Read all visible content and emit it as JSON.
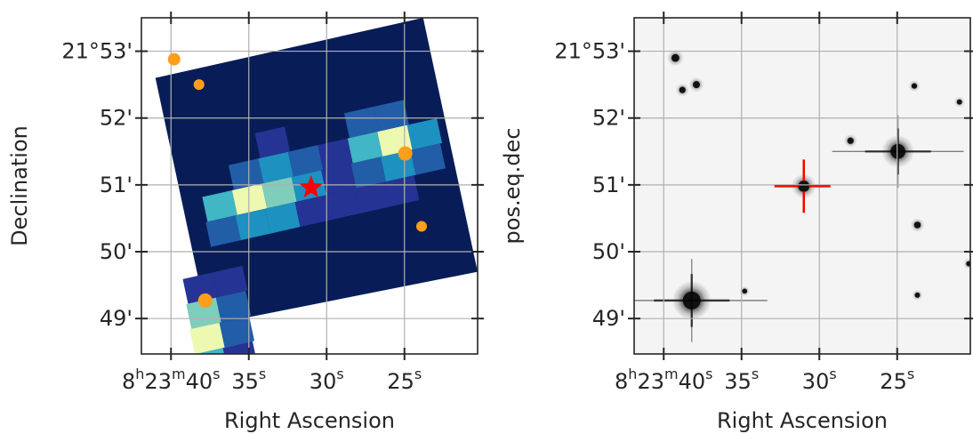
{
  "chart_data": [
    {
      "type": "heatmap",
      "panel": "left",
      "xlabel": "Right Ascension",
      "ylabel": "Declination",
      "x_ticks": [
        {
          "value": 40,
          "h": "8",
          "m": "23",
          "s": "40"
        },
        {
          "value": 35,
          "s": "35"
        },
        {
          "value": 30,
          "s": "30"
        },
        {
          "value": 25,
          "s": "25"
        }
      ],
      "y_ticks": [
        {
          "value": 53,
          "deg": "21°",
          "min": "53'"
        },
        {
          "value": 52,
          "min": "52'"
        },
        {
          "value": 51,
          "min": "51'"
        },
        {
          "value": 50,
          "min": "50'"
        },
        {
          "value": 49,
          "min": "49'"
        }
      ],
      "x_range_seconds": [
        41.9,
        20.3
      ],
      "y_range_arcmin": [
        48.47,
        53.5
      ],
      "grid": true,
      "colormap": "YlGnBu",
      "colormap_colors": [
        "#081d58",
        "#253494",
        "#225ea8",
        "#1d91c0",
        "#41b6c4",
        "#7fcdbb",
        "#c7e9b4",
        "#edf8b1"
      ],
      "image_corners": [
        {
          "ra_s": 41.0,
          "dec": 52.6
        },
        {
          "ra_s": 23.8,
          "dec": 53.5
        },
        {
          "ra_s": 20.3,
          "dec": 49.7
        },
        {
          "ra_s": 37.6,
          "dec": 48.9
        }
      ],
      "grid_cols": 9,
      "grid_rows": 10,
      "cells": [
        {
          "col": 2,
          "row": 4,
          "level": 2
        },
        {
          "col": 3,
          "row": 4,
          "level": 3
        },
        {
          "col": 4,
          "row": 4,
          "level": 2
        },
        {
          "col": 3,
          "row": 3,
          "level": 1
        },
        {
          "col": 5,
          "row": 4,
          "level": 1
        },
        {
          "col": 1,
          "row": 5,
          "level": 4
        },
        {
          "col": 2,
          "row": 5,
          "level": 7
        },
        {
          "col": 3,
          "row": 5,
          "level": 5
        },
        {
          "col": 4,
          "row": 5,
          "level": 3
        },
        {
          "col": 5,
          "row": 5,
          "level": 1
        },
        {
          "col": 1,
          "row": 6,
          "level": 2
        },
        {
          "col": 2,
          "row": 6,
          "level": 3
        },
        {
          "col": 3,
          "row": 6,
          "level": 3
        },
        {
          "col": 4,
          "row": 6,
          "level": 1
        },
        {
          "col": 5,
          "row": 6,
          "level": 1
        },
        {
          "col": 6,
          "row": 3,
          "level": 2
        },
        {
          "col": 7,
          "row": 3,
          "level": 2
        },
        {
          "col": 6,
          "row": 4,
          "level": 4
        },
        {
          "col": 7,
          "row": 4,
          "level": 7
        },
        {
          "col": 8,
          "row": 4,
          "level": 3
        },
        {
          "col": 6,
          "row": 5,
          "level": 2
        },
        {
          "col": 7,
          "row": 5,
          "level": 3
        },
        {
          "col": 8,
          "row": 5,
          "level": 2
        },
        {
          "col": 6,
          "row": 6,
          "level": 1
        },
        {
          "col": 7,
          "row": 6,
          "level": 1
        },
        {
          "col": 0,
          "row": 8,
          "level": 1
        },
        {
          "col": 1,
          "row": 8,
          "level": 1
        },
        {
          "col": 0,
          "row": 9,
          "level": 5
        },
        {
          "col": 1,
          "row": 9,
          "level": 2
        },
        {
          "col": 0,
          "row": 10,
          "level": 7
        },
        {
          "col": 1,
          "row": 10,
          "level": 2
        },
        {
          "col": 0,
          "row": 11,
          "level": 4
        },
        {
          "col": 1,
          "row": 11,
          "level": 1
        }
      ],
      "markers": [
        {
          "kind": "circle",
          "color": "#ff9e1b",
          "ra_s": 39.8,
          "dec": 52.88,
          "size": 7
        },
        {
          "kind": "circle",
          "color": "#ff9e1b",
          "ra_s": 38.2,
          "dec": 52.5,
          "size": 6
        },
        {
          "kind": "circle",
          "color": "#ff9e1b",
          "ra_s": 24.95,
          "dec": 51.47,
          "size": 8
        },
        {
          "kind": "circle",
          "color": "#ff9e1b",
          "ra_s": 23.9,
          "dec": 50.38,
          "size": 6
        },
        {
          "kind": "circle",
          "color": "#ff9e1b",
          "ra_s": 37.8,
          "dec": 49.27,
          "size": 8
        },
        {
          "kind": "star",
          "color": "#ff0000",
          "ra_s": 31.0,
          "dec": 50.96,
          "size": 14
        }
      ]
    },
    {
      "type": "heatmap",
      "panel": "right",
      "xlabel": "Right Ascension",
      "ylabel": "pos.eq.dec",
      "x_ticks": [
        {
          "value": 40,
          "h": "8",
          "m": "23",
          "s": "40"
        },
        {
          "value": 35,
          "s": "35"
        },
        {
          "value": 30,
          "s": "30"
        },
        {
          "value": 25,
          "s": "25"
        }
      ],
      "y_ticks": [
        {
          "value": 53,
          "deg": "21°",
          "min": "53'"
        },
        {
          "value": 52,
          "min": "52'"
        },
        {
          "value": 51,
          "min": "51'"
        },
        {
          "value": 50,
          "min": "50'"
        },
        {
          "value": 49,
          "min": "49'"
        }
      ],
      "x_range_seconds": [
        41.9,
        20.3
      ],
      "y_range_arcmin": [
        48.47,
        53.5
      ],
      "grid": true,
      "colormap": "gray_r",
      "stars": [
        {
          "ra_s": 38.2,
          "dec": 49.27,
          "mag": 1.0,
          "spikes": true
        },
        {
          "ra_s": 24.95,
          "dec": 51.5,
          "mag": 0.8,
          "spikes": true
        },
        {
          "ra_s": 31.0,
          "dec": 50.98,
          "mag": 0.55,
          "spikes": false
        },
        {
          "ra_s": 39.25,
          "dec": 52.9,
          "mag": 0.3,
          "spikes": false
        },
        {
          "ra_s": 37.9,
          "dec": 52.5,
          "mag": 0.25,
          "spikes": false
        },
        {
          "ra_s": 38.8,
          "dec": 52.42,
          "mag": 0.2,
          "spikes": false
        },
        {
          "ra_s": 28.0,
          "dec": 51.66,
          "mag": 0.2,
          "spikes": false
        },
        {
          "ra_s": 23.7,
          "dec": 50.4,
          "mag": 0.22,
          "spikes": false
        },
        {
          "ra_s": 23.9,
          "dec": 52.48,
          "mag": 0.14,
          "spikes": false
        },
        {
          "ra_s": 21.0,
          "dec": 52.24,
          "mag": 0.12,
          "spikes": false
        },
        {
          "ra_s": 23.7,
          "dec": 49.35,
          "mag": 0.12,
          "spikes": false
        },
        {
          "ra_s": 34.8,
          "dec": 49.41,
          "mag": 0.1,
          "spikes": false
        },
        {
          "ra_s": 20.4,
          "dec": 49.82,
          "mag": 0.12,
          "spikes": false
        }
      ],
      "crosshair": {
        "ra_s": 31.0,
        "dec": 50.98,
        "color": "#ff0000"
      }
    }
  ]
}
